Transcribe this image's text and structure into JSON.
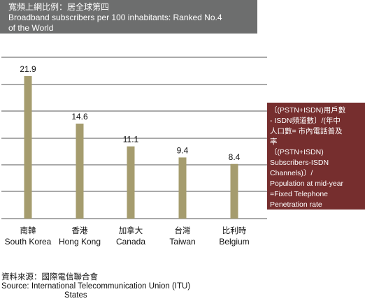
{
  "title": {
    "zh": "寬頻上網比例：居全球第四",
    "en_line1": "Broadband subscribers per 100 inhabitants: Ranked No.4",
    "en_line2": "of the World"
  },
  "chart_data": {
    "type": "bar",
    "categories": [
      {
        "zh": "南韓",
        "en": "South Korea"
      },
      {
        "zh": "香港",
        "en": "Hong Kong"
      },
      {
        "zh": "加拿大",
        "en": "Canada"
      },
      {
        "zh": "台灣",
        "en": "Taiwan"
      },
      {
        "zh": "比利時",
        "en": "Belgium"
      }
    ],
    "values": [
      21.9,
      14.6,
      11.1,
      9.4,
      8.4
    ],
    "value_labels": [
      "21.9",
      "14.6",
      "11.1",
      "9.4",
      "8.4"
    ],
    "grid": true,
    "bar_color": "#a59c6e"
  },
  "note": {
    "lines": [
      "〔(PSTN+ISDN)用戶數",
      "- ISDN頻道數〕/(年中",
      "人口數= 市內電話普及",
      "率",
      "〔(PSTN+ISDN)",
      "Subscribers-ISDN",
      "Channels)〕/",
      "Population at mid-year",
      "=Fixed Telephone",
      "Penetration rate"
    ],
    "color": "#762e2e"
  },
  "source": {
    "zh": "資料來源：國際電信聯合會",
    "en_line1": "Source: International Telecommunication Union (ITU)",
    "en_line2": "States"
  }
}
